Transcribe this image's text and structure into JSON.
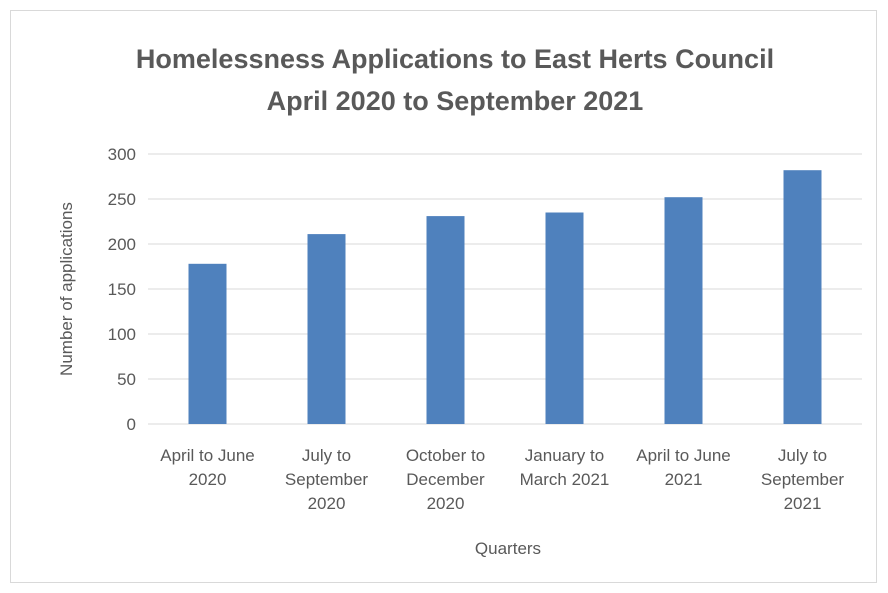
{
  "chart_data": {
    "type": "bar",
    "title": "Homelessness Applications to East Herts Council April 2020 to September 2021",
    "x_label": "Quarters",
    "y_label": "Number of applications",
    "categories": [
      "April to June 2020",
      "July to September 2020",
      "October to December 2020",
      "January to March 2021",
      "April to June 2021",
      "July to September 2021"
    ],
    "values": [
      178,
      211,
      231,
      235,
      252,
      282
    ],
    "color": "#4f81bd",
    "ylim": [
      0,
      300
    ],
    "yticks": [
      0,
      50,
      100,
      150,
      200,
      250,
      300
    ],
    "grid": true
  }
}
